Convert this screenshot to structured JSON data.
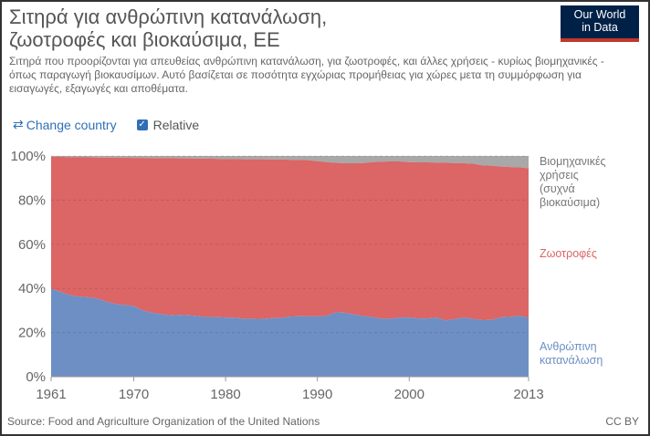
{
  "header": {
    "title_line1": "Σιτηρά για ανθρώπινη κατανάλωση,",
    "title_line2": "ζωοτροφές και βιοκαύσιμα, ΕΕ",
    "logo_line1": "Our World",
    "logo_line2": "in Data",
    "subtitle": "Σιτηρά που προορίζονται για απευθείας ανθρώπινη κατανάλωση, για ζωοτροφές, και άλλες χρήσεις - κυρίως βιομηχανικές - όπως παραγωγή βιοκαυσίμων. Αυτό βασίζεται σε ποσότητα εγχώριας προμήθειας για χώρες μετα τη συμμόρφωση για εισαγωγές, εξαγωγές και αποθέματα."
  },
  "controls": {
    "change_country": "Change country",
    "relative": "Relative",
    "relative_checked": true
  },
  "footer": {
    "source": "Source: Food and Agriculture Organization of the United Nations",
    "license": "CC BY"
  },
  "colors": {
    "human": "#6d8fc4",
    "feed": "#dc6565",
    "industrial": "#a8a8a8"
  },
  "chart_data": {
    "type": "area",
    "stacked": true,
    "relative": true,
    "x_ticks": [
      "1961",
      "1970",
      "1980",
      "1990",
      "2000",
      "2013"
    ],
    "y_ticks": [
      "0%",
      "20%",
      "40%",
      "60%",
      "80%",
      "100%"
    ],
    "ylim": [
      0,
      100
    ],
    "xlim": [
      1961,
      2013
    ],
    "years": [
      1961,
      1962,
      1963,
      1964,
      1965,
      1966,
      1967,
      1968,
      1969,
      1970,
      1971,
      1972,
      1973,
      1974,
      1975,
      1976,
      1977,
      1978,
      1979,
      1980,
      1981,
      1982,
      1983,
      1984,
      1985,
      1986,
      1987,
      1988,
      1989,
      1990,
      1991,
      1992,
      1993,
      1994,
      1995,
      1996,
      1997,
      1998,
      1999,
      2000,
      2001,
      2002,
      2003,
      2004,
      2005,
      2006,
      2007,
      2008,
      2009,
      2010,
      2011,
      2012,
      2013
    ],
    "series": [
      {
        "name": "Ανθρώπινη κατανάλωση",
        "label_lines": [
          "Ανθρώπινη",
          "κατανάλωση"
        ],
        "values": [
          39.8,
          38.5,
          37,
          36.3,
          36,
          35.5,
          34,
          33,
          32.5,
          32,
          30,
          29,
          28.3,
          27.8,
          28,
          27.8,
          27.5,
          27,
          27,
          26.8,
          26.7,
          26.3,
          26.3,
          26.2,
          26.5,
          26.6,
          27.2,
          27.4,
          27.3,
          27.3,
          27.6,
          29.2,
          29,
          28.2,
          27.5,
          27,
          26.3,
          26.3,
          26.8,
          26.8,
          26.4,
          26.4,
          26.8,
          25.4,
          26.2,
          26.7,
          26.2,
          25.6,
          25.7,
          26.9,
          27.1,
          27.7,
          26.7
        ]
      },
      {
        "name": "Ζωοτροφές",
        "label_lines": [
          "Ζωοτροφές"
        ],
        "values": null
      },
      {
        "name": "Βιομηχανικές χρήσεις (συχνά βιοκαύσιμα)",
        "label_lines": [
          "Βιομηχανικές",
          "χρήσεις",
          "(συχνά",
          "βιοκαύσιμα)"
        ],
        "values": [
          0.3,
          0.4,
          0.5,
          0.6,
          0.6,
          0.7,
          0.7,
          0.8,
          0.8,
          0.9,
          0.9,
          1,
          1,
          1,
          1.1,
          1.1,
          1.2,
          1.2,
          1.3,
          1.4,
          1.4,
          1.5,
          1.5,
          1.5,
          1.6,
          1.6,
          1.7,
          1.8,
          1.9,
          2.3,
          2.8,
          3.1,
          3.3,
          3.3,
          3.2,
          2.8,
          2.6,
          2.5,
          2.5,
          2.8,
          2.9,
          2.9,
          3,
          3.1,
          3.2,
          3.3,
          3.5,
          4.3,
          4.4,
          4.8,
          5,
          5.1,
          5.6
        ]
      }
    ]
  }
}
